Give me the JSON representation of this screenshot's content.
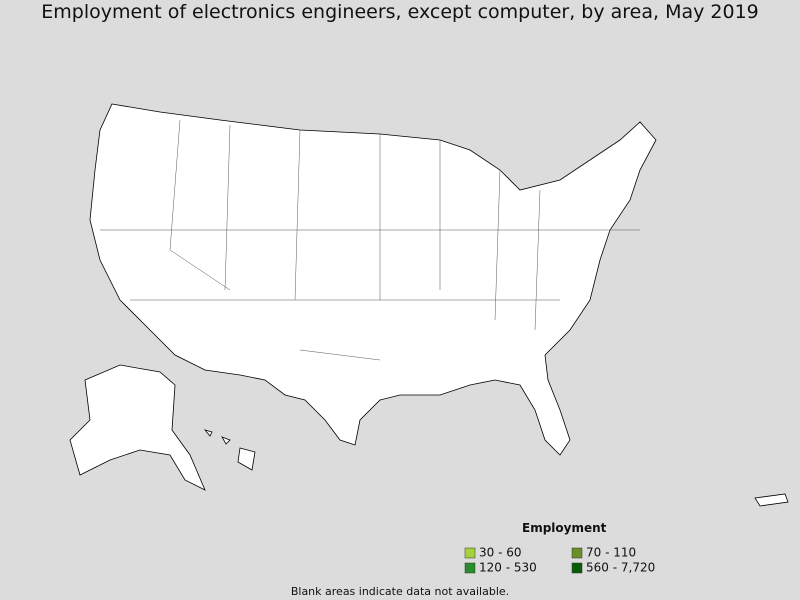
{
  "title": "Employment of electronics engineers, except computer, by area, May 2019",
  "legend": {
    "title": "Employment",
    "items": [
      {
        "label": "30 - 60",
        "color": "#a6d13b"
      },
      {
        "label": "70 - 110",
        "color": "#6a8f26"
      },
      {
        "label": "120 - 530",
        "color": "#2a8c2a"
      },
      {
        "label": "560 - 7,720",
        "color": "#075c07"
      }
    ]
  },
  "note": "Blank areas indicate data not available."
}
